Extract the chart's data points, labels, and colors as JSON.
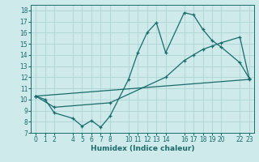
{
  "xlabel": "Humidex (Indice chaleur)",
  "bg_color": "#ceeaea",
  "line_color": "#1a6b6b",
  "grid_color": "#aed4d4",
  "ylim": [
    7,
    18.5
  ],
  "xlim": [
    -0.5,
    23.5
  ],
  "yticks": [
    7,
    8,
    9,
    10,
    11,
    12,
    13,
    14,
    15,
    16,
    17,
    18
  ],
  "xtick_positions": [
    0,
    1,
    2,
    4,
    5,
    6,
    7,
    8,
    10,
    11,
    12,
    13,
    14,
    16,
    17,
    18,
    19,
    20,
    22,
    23
  ],
  "xtick_labels": [
    "0",
    "1",
    "2",
    "4",
    "5",
    "6",
    "7",
    "8",
    "10",
    "11",
    "12",
    "13",
    "14",
    "16",
    "17",
    "18",
    "19",
    "20",
    "22",
    "23"
  ],
  "line1_x": [
    0,
    1,
    2,
    4,
    5,
    6,
    7,
    8,
    10,
    11,
    12,
    13,
    14,
    16,
    17,
    18,
    19,
    20,
    22,
    23
  ],
  "line1_y": [
    10.3,
    10.0,
    8.8,
    8.3,
    7.6,
    8.1,
    7.5,
    8.5,
    11.8,
    14.2,
    16.0,
    16.9,
    14.2,
    17.8,
    17.6,
    16.3,
    15.3,
    14.7,
    13.3,
    11.9
  ],
  "line2_x": [
    0,
    23
  ],
  "line2_y": [
    10.3,
    11.8
  ],
  "line3_x": [
    0,
    2,
    8,
    14,
    16,
    17,
    18,
    19,
    20,
    22,
    23
  ],
  "line3_y": [
    10.3,
    9.3,
    9.7,
    12.0,
    13.5,
    14.0,
    14.5,
    14.8,
    15.1,
    15.6,
    11.9
  ]
}
